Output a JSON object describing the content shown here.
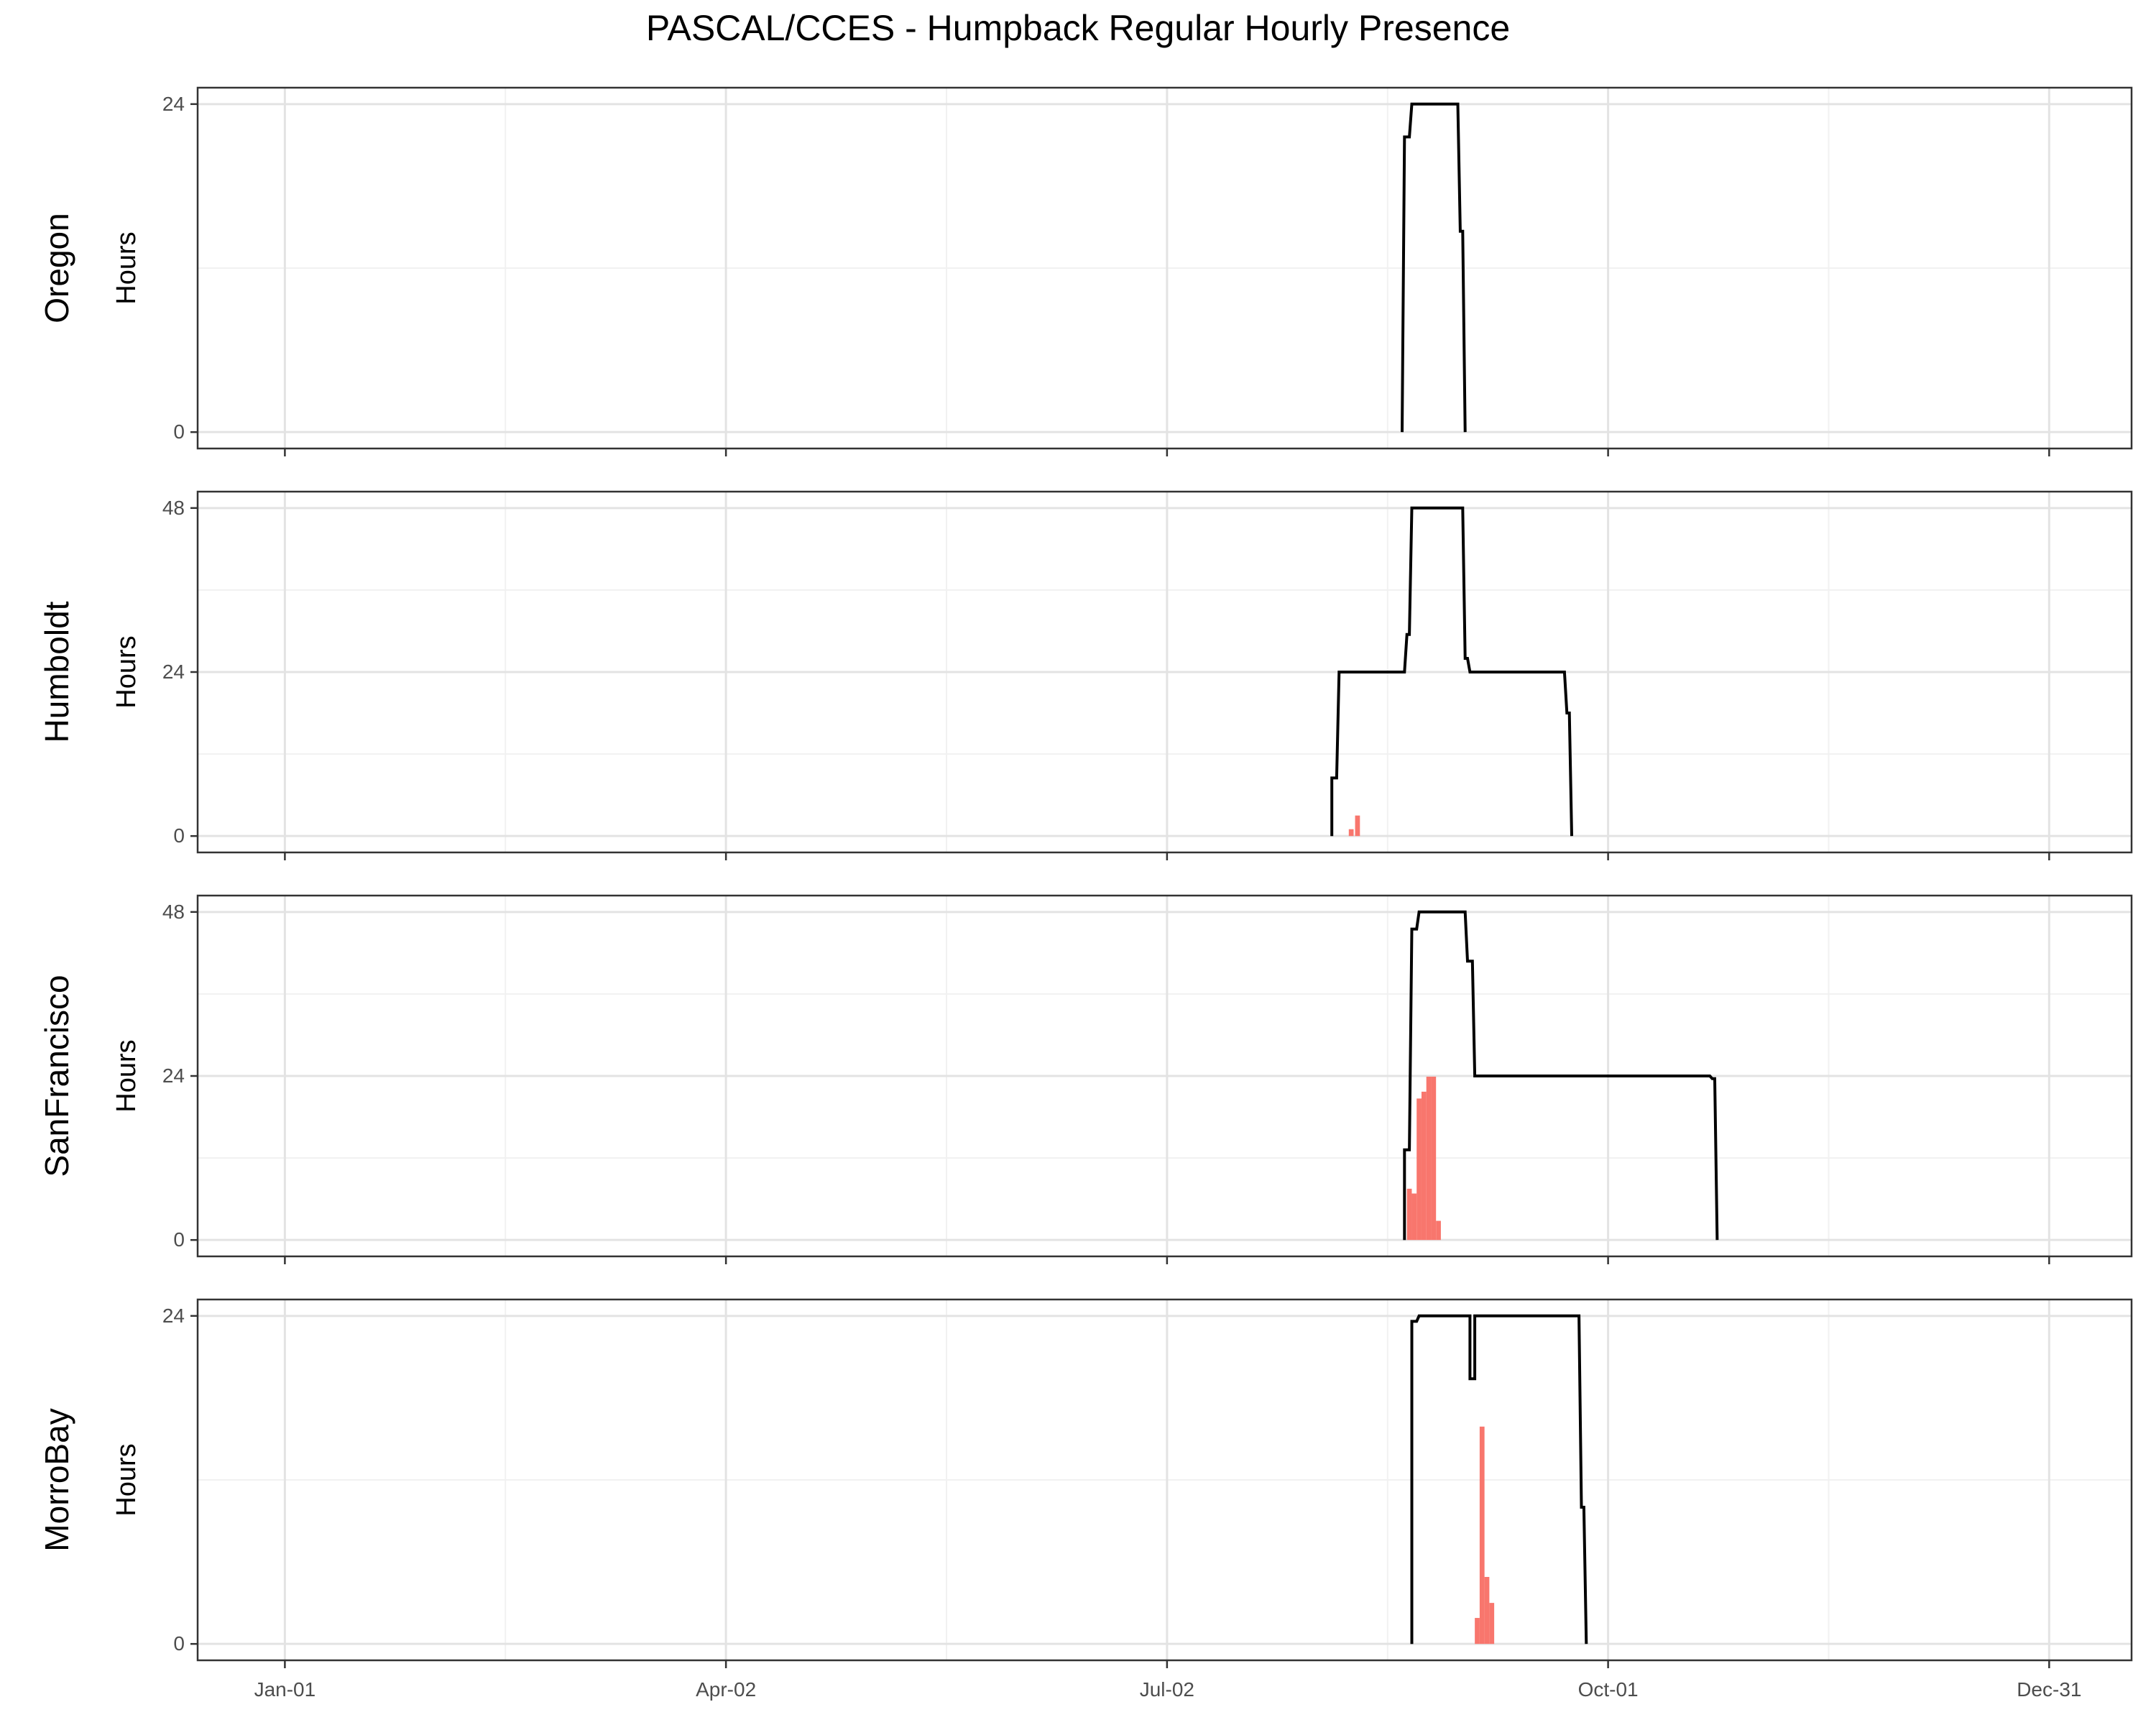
{
  "chart_data": {
    "type": "step-line-bar",
    "title": "PASCAL/CCES - Humpback Regular Hourly Presence",
    "x_axis": {
      "ticks": [
        "Jan-01",
        "Apr-02",
        "Jul-02",
        "Oct-01",
        "Dec-31"
      ],
      "tick_days": [
        1,
        92,
        183,
        274,
        365
      ],
      "minor_tick_days": [
        46.5,
        137.5,
        228.5,
        319.5
      ],
      "xlim": [
        -17,
        382
      ]
    },
    "grid": true,
    "line_color": "#000000",
    "bar_color": "#F8766D",
    "panels": [
      {
        "name": "Oregon",
        "ylabel": "Hours",
        "ylim": [
          -1.2,
          25.2
        ],
        "yticks": [
          0,
          24
        ],
        "y_minor": [
          12
        ],
        "line": [
          [
            231.5,
            0
          ],
          [
            232,
            21.6
          ],
          [
            233,
            21.6
          ],
          [
            233.5,
            24
          ],
          [
            243,
            24
          ],
          [
            243.5,
            14.7
          ],
          [
            244,
            14.7
          ],
          [
            244.5,
            0
          ]
        ],
        "bars": []
      },
      {
        "name": "Humboldt",
        "ylabel": "Hours",
        "ylim": [
          -2.4,
          50.4
        ],
        "yticks": [
          0,
          24,
          48
        ],
        "y_minor": [
          12,
          36
        ],
        "line": [
          [
            217,
            0
          ],
          [
            217,
            8.5
          ],
          [
            218,
            8.5
          ],
          [
            218.5,
            24
          ],
          [
            232,
            24
          ],
          [
            232.5,
            29.5
          ],
          [
            233,
            29.5
          ],
          [
            233.5,
            48
          ],
          [
            244,
            48
          ],
          [
            244.5,
            26
          ],
          [
            245,
            26
          ],
          [
            245.5,
            24
          ],
          [
            265,
            24
          ],
          [
            265.5,
            18
          ],
          [
            266,
            18
          ],
          [
            266.5,
            0
          ]
        ],
        "bars": [
          {
            "x": 221,
            "y": 1
          },
          {
            "x": 222.3,
            "y": 3
          }
        ]
      },
      {
        "name": "SanFrancisco",
        "ylabel": "Hours",
        "ylim": [
          -2.4,
          50.4
        ],
        "yticks": [
          0,
          24,
          48
        ],
        "y_minor": [
          12,
          36
        ],
        "line": [
          [
            232,
            0
          ],
          [
            232,
            13.2
          ],
          [
            233,
            13.2
          ],
          [
            233.5,
            45.5
          ],
          [
            234.5,
            45.5
          ],
          [
            235,
            48
          ],
          [
            244.5,
            48
          ],
          [
            245,
            40.8
          ],
          [
            246,
            40.8
          ],
          [
            246.5,
            24
          ],
          [
            295,
            24
          ],
          [
            295.5,
            23.6
          ],
          [
            296,
            23.6
          ],
          [
            296.5,
            0
          ]
        ],
        "bars": [
          {
            "x": 233,
            "y": 7.5
          },
          {
            "x": 234,
            "y": 6.8
          },
          {
            "x": 235,
            "y": 20.7
          },
          {
            "x": 236,
            "y": 21.7
          },
          {
            "x": 237,
            "y": 23.9
          },
          {
            "x": 238,
            "y": 23.9
          },
          {
            "x": 239,
            "y": 2.8
          }
        ]
      },
      {
        "name": "MorroBay",
        "ylabel": "Hours",
        "ylim": [
          -1.2,
          25.2
        ],
        "yticks": [
          0,
          24
        ],
        "y_minor": [
          12
        ],
        "line": [
          [
            233.5,
            0
          ],
          [
            233.5,
            23.6
          ],
          [
            234.5,
            23.6
          ],
          [
            235,
            24
          ],
          [
            245.5,
            24
          ],
          [
            245.5,
            19.4
          ],
          [
            246.5,
            19.4
          ],
          [
            246.5,
            24
          ],
          [
            268,
            24
          ],
          [
            268.5,
            10
          ],
          [
            269,
            10
          ],
          [
            269.5,
            0
          ]
        ],
        "bars": [
          {
            "x": 247,
            "y": 1.9
          },
          {
            "x": 248,
            "y": 15.9
          },
          {
            "x": 249,
            "y": 4.9
          },
          {
            "x": 250,
            "y": 3
          }
        ]
      }
    ]
  }
}
